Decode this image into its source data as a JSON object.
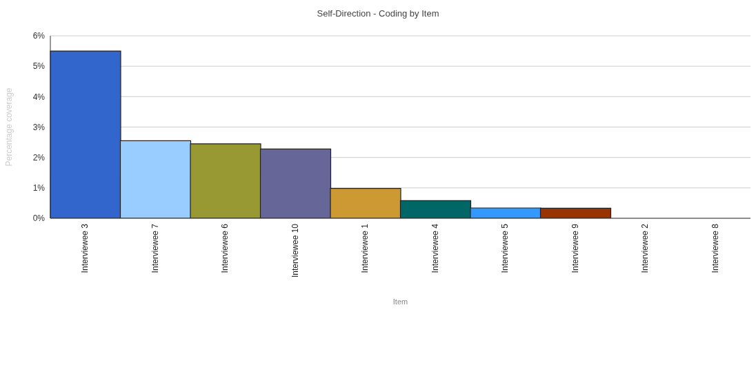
{
  "chart_data": {
    "type": "bar",
    "title": "Self-Direction - Coding by Item",
    "xlabel": "Item",
    "ylabel": "Percentage coverage",
    "categories": [
      "Interviewee 3",
      "Interviewee 7",
      "Interviewee 6",
      "Interviewee 10",
      "Interviewee 1",
      "Interviewee 4",
      "Interviewee 5",
      "Interviewee 9",
      "Interviewee 2",
      "Interviewee 8"
    ],
    "values": [
      5.5,
      2.55,
      2.45,
      2.28,
      0.98,
      0.58,
      0.34,
      0.33,
      0,
      0
    ],
    "colors": [
      "#3366cc",
      "#99ccff",
      "#999933",
      "#666699",
      "#cc9933",
      "#006666",
      "#3399ff",
      "#993300",
      "#dddddd",
      "#dddddd"
    ],
    "ylim": [
      0,
      6
    ],
    "yticks": [
      {
        "value": 0,
        "label": "0%"
      },
      {
        "value": 1,
        "label": "1%"
      },
      {
        "value": 2,
        "label": "2%"
      },
      {
        "value": 3,
        "label": "3%"
      },
      {
        "value": 4,
        "label": "4%"
      },
      {
        "value": 5,
        "label": "5%"
      },
      {
        "value": 6,
        "label": "6%"
      }
    ],
    "grid": "y",
    "legend": false
  }
}
